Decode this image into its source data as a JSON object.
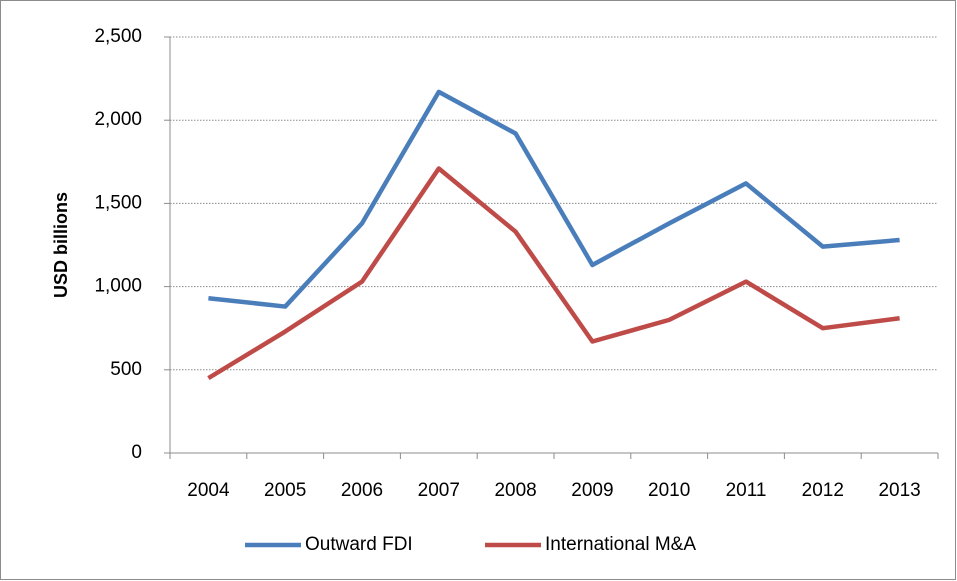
{
  "chart_data": {
    "type": "line",
    "y_label": "USD billions",
    "categories": [
      "2004",
      "2005",
      "2006",
      "2007",
      "2008",
      "2009",
      "2010",
      "2011",
      "2012",
      "2013"
    ],
    "series": [
      {
        "name": "Outward FDI",
        "color": "#4a7ebb",
        "values": [
          930,
          880,
          1380,
          2170,
          1920,
          1130,
          1380,
          1620,
          1240,
          1280
        ]
      },
      {
        "name": "International M&A",
        "color": "#be4b48",
        "values": [
          450,
          730,
          1030,
          1710,
          1330,
          670,
          800,
          1030,
          750,
          810
        ]
      }
    ],
    "ylim": [
      0,
      2500
    ],
    "yticks": [
      0,
      500,
      {
        "value": 1000,
        "label": "1,000"
      },
      {
        "value": 1500,
        "label": "1,500"
      },
      {
        "value": 2000,
        "label": "2,000"
      },
      {
        "value": 2500,
        "label": "2,500"
      }
    ],
    "grid": true,
    "legend": "bottom"
  }
}
